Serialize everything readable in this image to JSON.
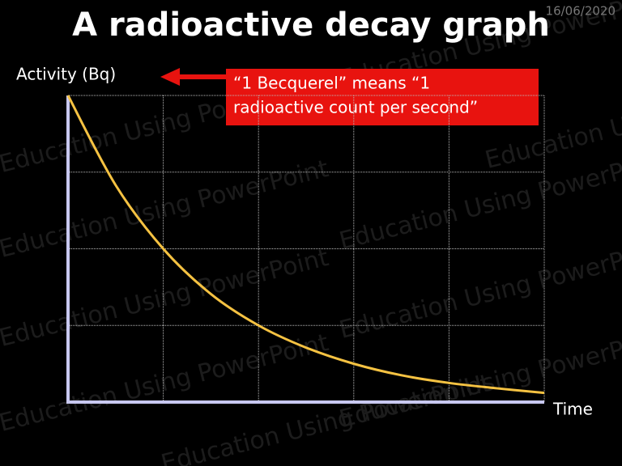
{
  "chart_data": {
    "type": "line",
    "title": "A radioactive decay graph",
    "date": "16/06/2020",
    "watermark": "Education Using PowerPoint",
    "y_label": "Activity (Bq)",
    "x_label": "Time",
    "annotation": [
      "“1 Becquerel” means “1",
      "radioactive count per second”"
    ],
    "x": [
      0,
      0.5,
      1,
      1.5,
      2,
      2.5,
      3,
      3.5,
      4,
      4.5,
      5
    ],
    "series": [
      {
        "color": "#f5c242",
        "values": [
          4,
          2.83,
          2,
          1.41,
          1,
          0.71,
          0.5,
          0.35,
          0.25,
          0.18,
          0.12
        ]
      }
    ],
    "xlim": [
      0,
      5
    ],
    "ylim": [
      0,
      4
    ],
    "grid": true
  }
}
